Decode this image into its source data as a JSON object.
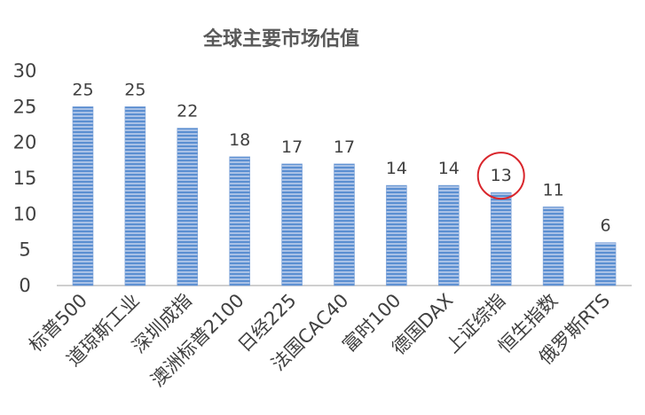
{
  "chart_data": {
    "type": "bar",
    "title": "全球主要市场估值",
    "categories": [
      "标普500",
      "道琼斯工业",
      "深圳成指",
      "澳洲标普2100",
      "日经225",
      "法国CAC40",
      "富时100",
      "德国DAX",
      "上证综指",
      "恒生指数",
      "俄罗斯RTS"
    ],
    "values": [
      25,
      25,
      22,
      18,
      17,
      17,
      14,
      14,
      13,
      11,
      6
    ],
    "data_labels": [
      "25",
      "25",
      "22",
      "18",
      "17",
      "17",
      "14",
      "14",
      "13",
      "11",
      "6"
    ],
    "ylim": [
      0,
      30
    ],
    "yticks": [
      "0",
      "5",
      "10",
      "15",
      "20",
      "25",
      "30"
    ],
    "xlabel": "",
    "ylabel": "",
    "grid": false,
    "highlight": {
      "category": "上证综指",
      "shape": "circle",
      "color": "#d9262c"
    },
    "bar_color": "#8eaadb",
    "bar_stripe_color": "#5b8fd1",
    "axis_color": "#bfbfbf"
  }
}
